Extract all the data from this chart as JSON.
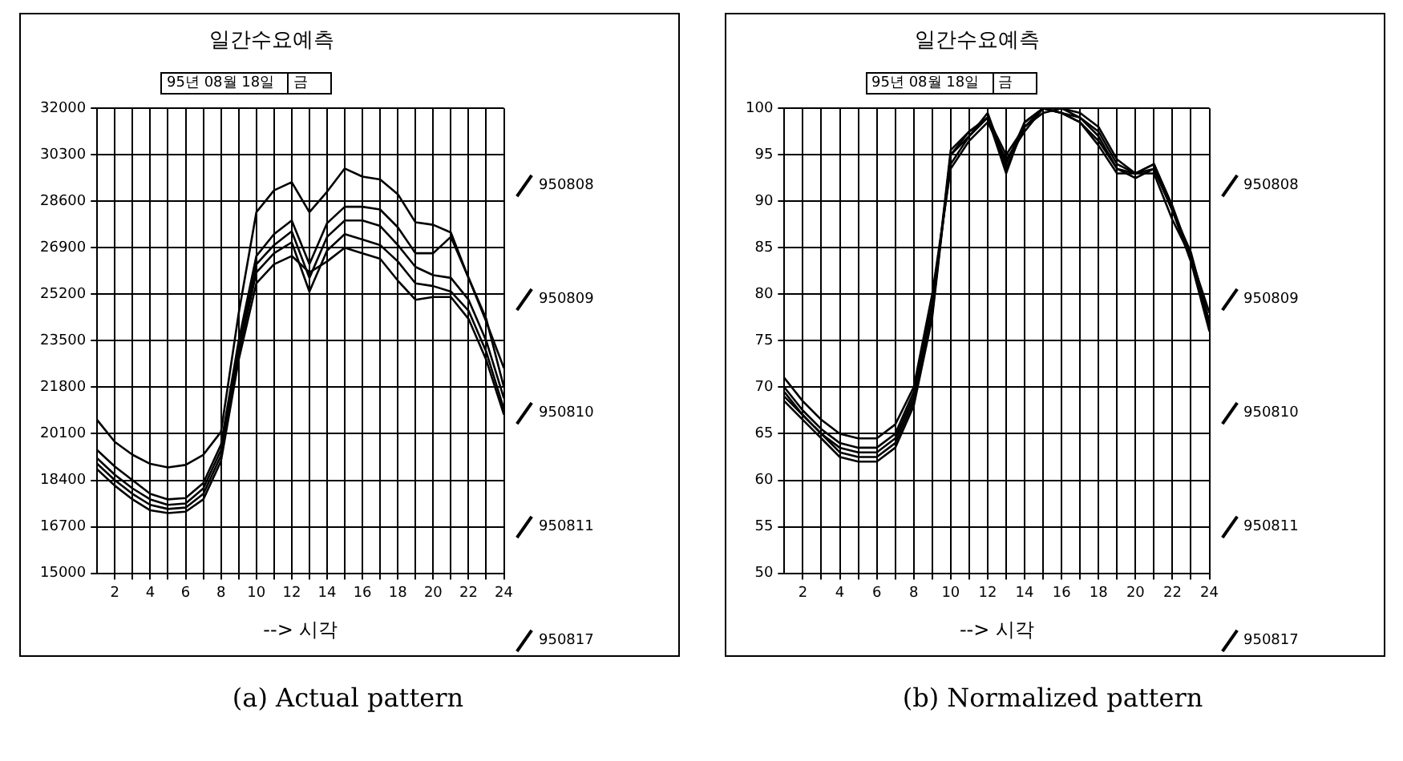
{
  "chart_data": [
    {
      "type": "line",
      "title": "일간수요예측",
      "xlabel": "--> 시각",
      "annotations": [
        "95년 08월 18일",
        "금",
        "(a) Actual pattern"
      ],
      "x": [
        1,
        2,
        3,
        4,
        5,
        6,
        7,
        8,
        9,
        10,
        11,
        12,
        13,
        14,
        15,
        16,
        17,
        18,
        19,
        20,
        21,
        22,
        23,
        24
      ],
      "xlim": [
        1,
        24
      ],
      "ylim": [
        15000,
        32000
      ],
      "yticks": [
        15000,
        16700,
        18400,
        20100,
        21800,
        23500,
        25200,
        26900,
        28600,
        30300,
        32000
      ],
      "xticks": [
        2,
        {
          "value": 3,
          "label": null
        },
        4,
        {
          "value": 5,
          "label": null
        },
        6,
        {
          "value": 7,
          "label": null
        },
        8,
        {
          "value": 9,
          "label": null
        },
        10,
        {
          "value": 11,
          "label": null
        },
        12,
        {
          "value": 13,
          "label": null
        },
        14,
        {
          "value": 15,
          "label": null
        },
        16,
        {
          "value": 17,
          "label": null
        },
        18,
        {
          "value": 19,
          "label": null
        },
        20,
        {
          "value": 21,
          "label": null
        },
        22,
        {
          "value": 23,
          "label": null
        },
        24
      ],
      "grid": true,
      "legend": "right",
      "marker": "none",
      "line_style": "solid",
      "series": [
        {
          "name": "950808",
          "color": "#000000",
          "values": [
            20600,
            19800,
            19330,
            19000,
            18870,
            18960,
            19330,
            20170,
            24500,
            28200,
            29000,
            29300,
            28200,
            28950,
            29800,
            29500,
            29400,
            28860,
            27830,
            27740,
            27460,
            25800,
            24200,
            22500
          ]
        },
        {
          "name": "950809",
          "color": "#000000",
          "values": [
            19500,
            18900,
            18400,
            17900,
            17700,
            17750,
            18300,
            19700,
            23500,
            26600,
            27400,
            27900,
            26300,
            27800,
            28400,
            28400,
            28300,
            27650,
            26700,
            26700,
            27300,
            25800,
            24300,
            21800
          ]
        },
        {
          "name": "950810",
          "color": "#000000",
          "values": [
            19200,
            18600,
            18100,
            17700,
            17500,
            17550,
            18100,
            19500,
            23200,
            26300,
            27000,
            27500,
            25800,
            27300,
            27900,
            27900,
            27700,
            27000,
            26200,
            25900,
            25800,
            25000,
            23500,
            21400
          ]
        },
        {
          "name": "950811",
          "color": "#000000",
          "values": [
            19000,
            18400,
            17900,
            17500,
            17350,
            17400,
            17900,
            19300,
            23000,
            26000,
            26700,
            27100,
            25300,
            26800,
            27400,
            27200,
            27000,
            26400,
            25600,
            25500,
            25300,
            24600,
            23100,
            21000
          ]
        },
        {
          "name": "950817",
          "color": "#000000",
          "values": [
            18800,
            18200,
            17700,
            17300,
            17200,
            17250,
            17700,
            19100,
            22800,
            25600,
            26300,
            26600,
            26000,
            26400,
            26900,
            26700,
            26500,
            25700,
            25000,
            25100,
            25100,
            24300,
            22800,
            20800
          ]
        }
      ]
    },
    {
      "type": "line",
      "title": "일간수요예측",
      "xlabel": "--> 시각",
      "annotations": [
        "95년 08월 18일",
        "금",
        "(b) Normalized pattern"
      ],
      "x": [
        1,
        2,
        3,
        4,
        5,
        6,
        7,
        8,
        9,
        10,
        11,
        12,
        13,
        14,
        15,
        16,
        17,
        18,
        19,
        20,
        21,
        22,
        23,
        24
      ],
      "xlim": [
        1,
        24
      ],
      "ylim": [
        50,
        100
      ],
      "yticks": [
        50,
        55,
        60,
        65,
        70,
        75,
        80,
        85,
        90,
        95,
        100
      ],
      "xticks": [
        2,
        {
          "value": 3,
          "label": null
        },
        4,
        {
          "value": 5,
          "label": null
        },
        6,
        {
          "value": 7,
          "label": null
        },
        8,
        {
          "value": 9,
          "label": null
        },
        10,
        {
          "value": 11,
          "label": null
        },
        12,
        {
          "value": 13,
          "label": null
        },
        14,
        {
          "value": 15,
          "label": null
        },
        16,
        {
          "value": 17,
          "label": null
        },
        18,
        {
          "value": 19,
          "label": null
        },
        20,
        {
          "value": 21,
          "label": null
        },
        22,
        {
          "value": 23,
          "label": null
        },
        24
      ],
      "grid": true,
      "legend": "right",
      "marker": "none",
      "line_style": "solid",
      "series": [
        {
          "name": "950808",
          "color": "#000000",
          "values": [
            71,
            68.5,
            66.5,
            65,
            64.5,
            64.5,
            66,
            70,
            80,
            93.5,
            96.5,
            98.5,
            94.5,
            97.5,
            100,
            99.5,
            99,
            97.5,
            94,
            93,
            93,
            88,
            84,
            78
          ]
        },
        {
          "name": "950809",
          "color": "#000000",
          "values": [
            70,
            67.5,
            65.5,
            64,
            63.5,
            63.5,
            65,
            69.5,
            79,
            94,
            97,
            99,
            93.5,
            98,
            99.5,
            100,
            99.5,
            98,
            94.5,
            93,
            93.5,
            89,
            84.5,
            77
          ]
        },
        {
          "name": "950810",
          "color": "#000000",
          "values": [
            69,
            67,
            65,
            63.5,
            63,
            63,
            64.5,
            69,
            78,
            95,
            97,
            99.5,
            94,
            98.5,
            100,
            100,
            99,
            97,
            93.5,
            92.5,
            93.5,
            89,
            84,
            76.5
          ]
        },
        {
          "name": "950811",
          "color": "#000000",
          "values": [
            69.5,
            67,
            65,
            63,
            62.5,
            62.5,
            64,
            68.5,
            78,
            95.5,
            97.5,
            99,
            93,
            98.5,
            100,
            99.5,
            98.5,
            96.5,
            93.5,
            93,
            94,
            89.5,
            84,
            77
          ]
        },
        {
          "name": "950817",
          "color": "#000000",
          "values": [
            68.5,
            66.5,
            64.5,
            62.5,
            62,
            62,
            63.5,
            68,
            77.5,
            95,
            97.5,
            99,
            95,
            98,
            100,
            99.5,
            98.5,
            96,
            93,
            93,
            94,
            89,
            83.5,
            76
          ]
        }
      ]
    }
  ]
}
